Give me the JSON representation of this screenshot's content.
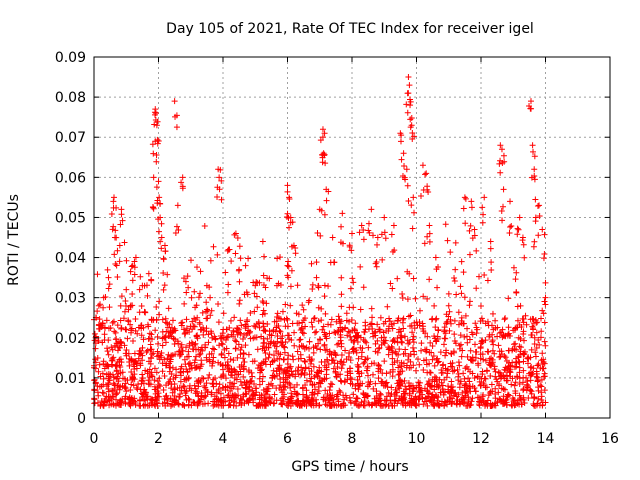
{
  "chart_data": {
    "type": "scatter",
    "title": "Day 105 of 2021, Rate Of TEC Index for receiver igel",
    "xlabel": "GPS time / hours",
    "ylabel": "ROTI / TECUs",
    "xlim": [
      0,
      16
    ],
    "ylim": [
      0,
      0.09
    ],
    "x_ticks": [
      "0",
      "2",
      "4",
      "6",
      "8",
      "10",
      "12",
      "14",
      "16"
    ],
    "y_ticks": [
      "0",
      "0.01",
      "0.02",
      "0.03",
      "0.04",
      "0.05",
      "0.06",
      "0.07",
      "0.08",
      "0.09"
    ],
    "grid": true,
    "marker": "+",
    "series_color": "#ff0000",
    "x_data_extent": [
      0,
      14
    ],
    "series": [
      {
        "name": "ROTI",
        "points": [
          [
            0.05,
            0.02
          ],
          [
            0.15,
            0.028
          ],
          [
            0.3,
            0.03
          ],
          [
            0.45,
            0.035
          ],
          [
            0.6,
            0.054
          ],
          [
            0.62,
            0.055
          ],
          [
            0.65,
            0.045
          ],
          [
            0.85,
            0.052
          ],
          [
            0.8,
            0.043
          ],
          [
            1.0,
            0.032
          ],
          [
            1.2,
            0.038
          ],
          [
            1.3,
            0.04
          ],
          [
            1.5,
            0.033
          ],
          [
            1.7,
            0.036
          ],
          [
            1.9,
            0.077
          ],
          [
            1.92,
            0.076
          ],
          [
            1.95,
            0.073
          ],
          [
            1.9,
            0.069
          ],
          [
            1.85,
            0.06
          ],
          [
            2.0,
            0.059
          ],
          [
            2.02,
            0.055
          ],
          [
            2.05,
            0.05
          ],
          [
            2.1,
            0.045
          ],
          [
            2.2,
            0.043
          ],
          [
            2.5,
            0.079
          ],
          [
            2.6,
            0.053
          ],
          [
            2.75,
            0.06
          ],
          [
            2.85,
            0.034
          ],
          [
            3.2,
            0.025
          ],
          [
            3.5,
            0.033
          ],
          [
            3.6,
            0.03
          ],
          [
            3.85,
            0.062
          ],
          [
            3.88,
            0.06
          ],
          [
            4.2,
            0.042
          ],
          [
            4.4,
            0.046
          ],
          [
            4.5,
            0.037
          ],
          [
            4.7,
            0.038
          ],
          [
            5.0,
            0.033
          ],
          [
            5.3,
            0.026
          ],
          [
            5.6,
            0.024
          ],
          [
            6.0,
            0.058
          ],
          [
            6.05,
            0.055
          ],
          [
            6.1,
            0.05
          ],
          [
            6.2,
            0.043
          ],
          [
            6.0,
            0.038
          ],
          [
            6.5,
            0.027
          ],
          [
            6.9,
            0.035
          ],
          [
            7.1,
            0.072
          ],
          [
            7.15,
            0.071
          ],
          [
            7.12,
            0.066
          ],
          [
            7.2,
            0.057
          ],
          [
            7.0,
            0.052
          ],
          [
            7.4,
            0.045
          ],
          [
            7.7,
            0.051
          ],
          [
            8.0,
            0.046
          ],
          [
            8.3,
            0.048
          ],
          [
            8.6,
            0.052
          ],
          [
            8.8,
            0.045
          ],
          [
            9.0,
            0.05
          ],
          [
            9.3,
            0.048
          ],
          [
            9.5,
            0.071
          ],
          [
            9.6,
            0.066
          ],
          [
            9.75,
            0.085
          ],
          [
            9.78,
            0.083
          ],
          [
            9.8,
            0.078
          ],
          [
            9.85,
            0.073
          ],
          [
            9.7,
            0.062
          ],
          [
            9.9,
            0.055
          ],
          [
            10.2,
            0.063
          ],
          [
            10.3,
            0.061
          ],
          [
            10.4,
            0.048
          ],
          [
            10.6,
            0.04
          ],
          [
            11.0,
            0.028
          ],
          [
            11.2,
            0.037
          ],
          [
            11.4,
            0.039
          ],
          [
            11.5,
            0.055
          ],
          [
            11.7,
            0.054
          ],
          [
            11.8,
            0.047
          ],
          [
            12.1,
            0.055
          ],
          [
            12.3,
            0.044
          ],
          [
            12.6,
            0.068
          ],
          [
            12.65,
            0.067
          ],
          [
            12.7,
            0.057
          ],
          [
            12.9,
            0.054
          ],
          [
            13.2,
            0.05
          ],
          [
            13.3,
            0.045
          ],
          [
            13.55,
            0.079
          ],
          [
            13.6,
            0.068
          ],
          [
            13.65,
            0.062
          ],
          [
            13.7,
            0.05
          ],
          [
            13.8,
            0.053
          ],
          [
            13.9,
            0.047
          ],
          [
            14.0,
            0.03
          ]
        ],
        "baseline_band": [
          0.003,
          0.025
        ],
        "density_points": 2600
      }
    ]
  }
}
